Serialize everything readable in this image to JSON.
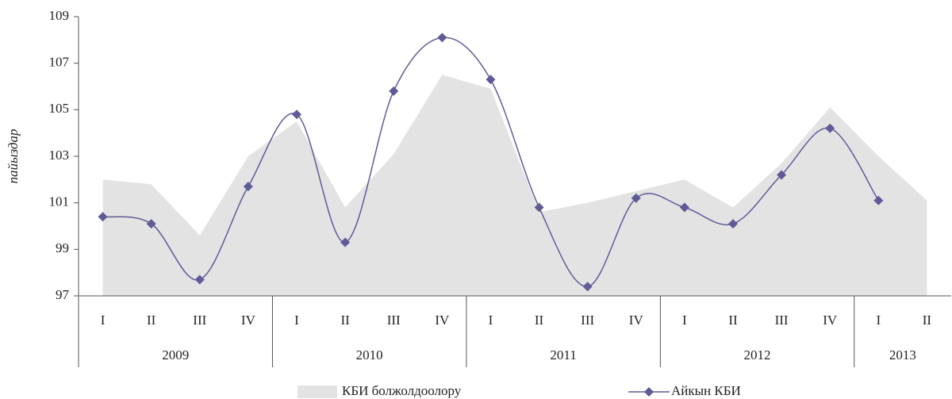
{
  "chart_data": {
    "type": "area-line",
    "y_label": "пайыздар",
    "categories": [
      "I",
      "II",
      "III",
      "IV",
      "I",
      "II",
      "III",
      "IV",
      "I",
      "II",
      "III",
      "IV",
      "I",
      "II",
      "III",
      "IV",
      "I",
      "II"
    ],
    "years": [
      "2009",
      "2010",
      "2011",
      "2012",
      "2013"
    ],
    "ylim": [
      97,
      109
    ],
    "yticks": [
      97,
      99,
      101,
      103,
      105,
      107,
      109
    ],
    "series": [
      {
        "name": "КБИ болжолдоолору",
        "kind": "area",
        "color": "#e3e3e3",
        "values": [
          102.0,
          101.8,
          99.6,
          103.0,
          104.5,
          100.8,
          103.1,
          106.5,
          105.9,
          100.6,
          101.0,
          101.5,
          102.0,
          100.8,
          102.7,
          105.1,
          103.0,
          101.1
        ]
      },
      {
        "name": "Айкын КБИ",
        "kind": "line",
        "color": "#5f5b96",
        "values": [
          100.4,
          100.1,
          97.7,
          101.7,
          104.8,
          99.3,
          105.8,
          108.1,
          106.3,
          100.8,
          97.4,
          101.2,
          100.8,
          100.1,
          102.2,
          104.2,
          101.1,
          null
        ]
      }
    ]
  }
}
